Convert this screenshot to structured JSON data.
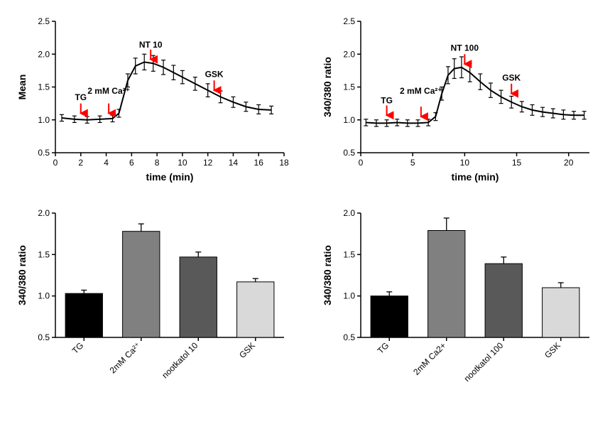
{
  "colors": {
    "background": "#ffffff",
    "axis": "#000000",
    "line": "#000000",
    "error_bar": "#000000",
    "arrow": "#ff0000",
    "text": "#000000"
  },
  "line_chart_left": {
    "type": "line",
    "xlabel": "time (min)",
    "ylabel": "Mean",
    "label_fontsize": 14,
    "tick_fontsize": 12,
    "xlim": [
      0,
      18
    ],
    "ylim": [
      0.5,
      2.5
    ],
    "xtick_step": 2,
    "ytick_step": 0.5,
    "line_color": "#000000",
    "line_width": 2,
    "marker": "none",
    "error_cap_width": 6,
    "annotations": [
      {
        "label": "TG",
        "x": 2.0,
        "y_text": 1.3,
        "arrow_y_top": 1.25,
        "arrow_y_bot": 1.1
      },
      {
        "label": "2 mM Ca²⁺",
        "x": 4.2,
        "y_text": 1.4,
        "arrow_y_top": 1.25,
        "arrow_y_bot": 1.1
      },
      {
        "label": "NT 10",
        "x": 7.5,
        "y_text": 2.1,
        "arrow_y_top": 2.07,
        "arrow_y_bot": 1.92
      },
      {
        "label": "GSK",
        "x": 12.5,
        "y_text": 1.65,
        "arrow_y_top": 1.6,
        "arrow_y_bot": 1.45
      }
    ],
    "series": [
      {
        "x": 0.5,
        "y": 1.03,
        "err": 0.05
      },
      {
        "x": 1.5,
        "y": 1.01,
        "err": 0.05
      },
      {
        "x": 2.5,
        "y": 1.0,
        "err": 0.05
      },
      {
        "x": 3.5,
        "y": 1.01,
        "err": 0.05
      },
      {
        "x": 4.5,
        "y": 1.02,
        "err": 0.05
      },
      {
        "x": 5.0,
        "y": 1.1,
        "err": 0.06
      },
      {
        "x": 5.7,
        "y": 1.6,
        "err": 0.1
      },
      {
        "x": 6.3,
        "y": 1.82,
        "err": 0.12
      },
      {
        "x": 7.0,
        "y": 1.88,
        "err": 0.12
      },
      {
        "x": 7.7,
        "y": 1.86,
        "err": 0.12
      },
      {
        "x": 8.5,
        "y": 1.8,
        "err": 0.11
      },
      {
        "x": 9.3,
        "y": 1.72,
        "err": 0.11
      },
      {
        "x": 10.0,
        "y": 1.65,
        "err": 0.1
      },
      {
        "x": 11.0,
        "y": 1.55,
        "err": 0.1
      },
      {
        "x": 12.0,
        "y": 1.45,
        "err": 0.1
      },
      {
        "x": 13.0,
        "y": 1.35,
        "err": 0.09
      },
      {
        "x": 14.0,
        "y": 1.27,
        "err": 0.08
      },
      {
        "x": 15.0,
        "y": 1.2,
        "err": 0.07
      },
      {
        "x": 16.0,
        "y": 1.16,
        "err": 0.07
      },
      {
        "x": 17.0,
        "y": 1.15,
        "err": 0.06
      }
    ]
  },
  "line_chart_right": {
    "type": "line",
    "xlabel": "time (min)",
    "ylabel": "340/380 ratio",
    "label_fontsize": 14,
    "tick_fontsize": 12,
    "xlim": [
      0,
      22
    ],
    "ylim": [
      0.5,
      2.5
    ],
    "xtick_step": 5,
    "ytick_step": 0.5,
    "line_color": "#000000",
    "line_width": 2,
    "error_cap_width": 6,
    "annotations": [
      {
        "label": "TG",
        "x": 2.5,
        "y_text": 1.25,
        "arrow_y_top": 1.22,
        "arrow_y_bot": 1.07
      },
      {
        "label": "2 mM Ca²⁺",
        "x": 5.8,
        "y_text": 1.4,
        "arrow_y_top": 1.2,
        "arrow_y_bot": 1.05
      },
      {
        "label": "NT 100",
        "x": 10.0,
        "y_text": 2.05,
        "arrow_y_top": 2.0,
        "arrow_y_bot": 1.85
      },
      {
        "label": "GSK",
        "x": 14.5,
        "y_text": 1.6,
        "arrow_y_top": 1.55,
        "arrow_y_bot": 1.4
      }
    ],
    "series": [
      {
        "x": 0.5,
        "y": 0.96,
        "err": 0.05
      },
      {
        "x": 1.5,
        "y": 0.95,
        "err": 0.05
      },
      {
        "x": 2.5,
        "y": 0.95,
        "err": 0.05
      },
      {
        "x": 3.5,
        "y": 0.96,
        "err": 0.05
      },
      {
        "x": 4.5,
        "y": 0.95,
        "err": 0.05
      },
      {
        "x": 5.5,
        "y": 0.95,
        "err": 0.05
      },
      {
        "x": 6.5,
        "y": 0.96,
        "err": 0.05
      },
      {
        "x": 7.2,
        "y": 1.05,
        "err": 0.06
      },
      {
        "x": 7.8,
        "y": 1.4,
        "err": 0.1
      },
      {
        "x": 8.4,
        "y": 1.68,
        "err": 0.13
      },
      {
        "x": 9.0,
        "y": 1.78,
        "err": 0.15
      },
      {
        "x": 9.7,
        "y": 1.8,
        "err": 0.16
      },
      {
        "x": 10.5,
        "y": 1.72,
        "err": 0.14
      },
      {
        "x": 11.5,
        "y": 1.58,
        "err": 0.12
      },
      {
        "x": 12.5,
        "y": 1.45,
        "err": 0.11
      },
      {
        "x": 13.5,
        "y": 1.35,
        "err": 0.1
      },
      {
        "x": 14.5,
        "y": 1.27,
        "err": 0.09
      },
      {
        "x": 15.5,
        "y": 1.2,
        "err": 0.08
      },
      {
        "x": 16.5,
        "y": 1.15,
        "err": 0.08
      },
      {
        "x": 17.5,
        "y": 1.12,
        "err": 0.07
      },
      {
        "x": 18.5,
        "y": 1.1,
        "err": 0.07
      },
      {
        "x": 19.5,
        "y": 1.08,
        "err": 0.07
      },
      {
        "x": 20.5,
        "y": 1.07,
        "err": 0.06
      },
      {
        "x": 21.5,
        "y": 1.07,
        "err": 0.06
      }
    ]
  },
  "bar_chart_left": {
    "type": "bar",
    "ylabel": "340/380 ratio",
    "label_fontsize": 14,
    "tick_fontsize": 12,
    "ylim": [
      0.5,
      2.0
    ],
    "ytick_step": 0.5,
    "bar_width": 0.65,
    "bar_border_color": "#000000",
    "error_cap_width": 8,
    "categories": [
      "TG",
      "2mM Ca²⁺",
      "nootkatol 10",
      "GSK"
    ],
    "values": [
      1.03,
      1.78,
      1.47,
      1.17
    ],
    "errors": [
      0.04,
      0.09,
      0.06,
      0.04
    ],
    "bar_colors": [
      "#000000",
      "#808080",
      "#595959",
      "#d9d9d9"
    ]
  },
  "bar_chart_right": {
    "type": "bar",
    "ylabel": "340/380 ratio",
    "label_fontsize": 14,
    "tick_fontsize": 12,
    "ylim": [
      0.5,
      2.0
    ],
    "ytick_step": 0.5,
    "bar_width": 0.65,
    "bar_border_color": "#000000",
    "error_cap_width": 8,
    "categories": [
      "TG",
      "2mM Ca2+",
      "nootkatol 100",
      "GSK"
    ],
    "values": [
      1.0,
      1.79,
      1.39,
      1.1
    ],
    "errors": [
      0.05,
      0.15,
      0.08,
      0.06
    ],
    "bar_colors": [
      "#000000",
      "#808080",
      "#595959",
      "#d9d9d9"
    ]
  }
}
